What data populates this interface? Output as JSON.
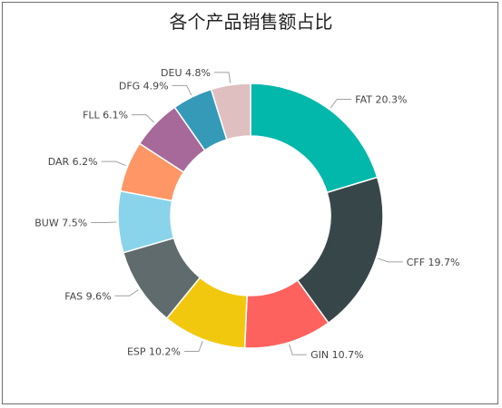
{
  "chart_data": {
    "type": "pie",
    "title": "各个产品销售额占比",
    "donut": true,
    "categories": [
      "FAT",
      "CFF",
      "GIN",
      "ESP",
      "FAS",
      "BUW",
      "DAR",
      "FLL",
      "DFG",
      "DEU"
    ],
    "values": [
      20.3,
      19.7,
      10.7,
      10.2,
      9.6,
      7.5,
      6.2,
      6.1,
      4.9,
      4.8
    ],
    "labels": [
      "FAT 20.3%",
      "CFF 19.7%",
      "GIN 10.7%",
      "ESP 10.2%",
      "FAS 9.6%",
      "BUW 7.5%",
      "DAR 6.2%",
      "FLL 6.1%",
      "DFG 4.9%",
      "DEU 4.8%"
    ],
    "colors": [
      "#01B8AA",
      "#374649",
      "#FD625E",
      "#F2C80F",
      "#5F6B6D",
      "#8AD4EB",
      "#FE9666",
      "#A66999",
      "#3599B8",
      "#DFBFBF"
    ]
  }
}
